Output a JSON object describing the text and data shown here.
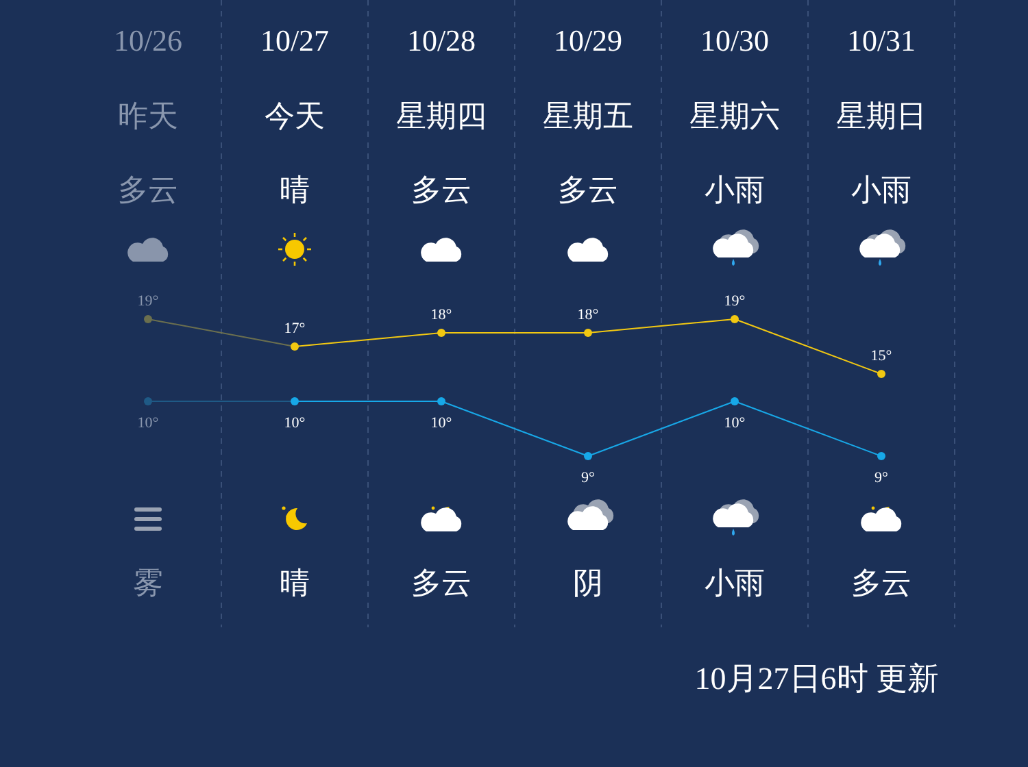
{
  "chart_data": [
    {
      "type": "line",
      "categories": [
        "10/26",
        "10/27",
        "10/28",
        "10/29",
        "10/30",
        "10/31"
      ],
      "marker": "circle",
      "line_style": "solid",
      "series": [
        {
          "colors": [
            "#6b6f4e",
            "#f2c811",
            "#f2c811",
            "#f2c811",
            "#f2c811",
            "#f2c811"
          ],
          "values": [
            19,
            17,
            18,
            18,
            19,
            15
          ],
          "value_labels": [
            "19°",
            "17°",
            "18°",
            "18°",
            "19°",
            "15°"
          ]
        }
      ],
      "annotations": [
        "昨天",
        "今天",
        "星期四",
        "星期五",
        "星期六",
        "星期日",
        "多云",
        "晴",
        "多云",
        "多云",
        "小雨",
        "小雨",
        "雾",
        "晴",
        "多云",
        "阴",
        "小雨",
        "多云",
        "10月27日6时 更新"
      ]
    },
    {
      "type": "line",
      "categories": [
        null,
        null,
        null,
        null,
        null,
        null
      ],
      "marker": "circle",
      "line_style": "solid",
      "series": [
        {
          "colors": [
            "#1f5a86",
            "#17a8e8",
            "#17a8e8",
            "#17a8e8",
            "#17a8e8",
            "#17a8e8"
          ],
          "values": [
            10,
            10,
            10,
            9,
            10,
            9
          ],
          "value_labels": [
            "10°",
            "10°",
            "10°",
            "9°",
            "10°",
            "9°"
          ]
        }
      ]
    }
  ]
}
